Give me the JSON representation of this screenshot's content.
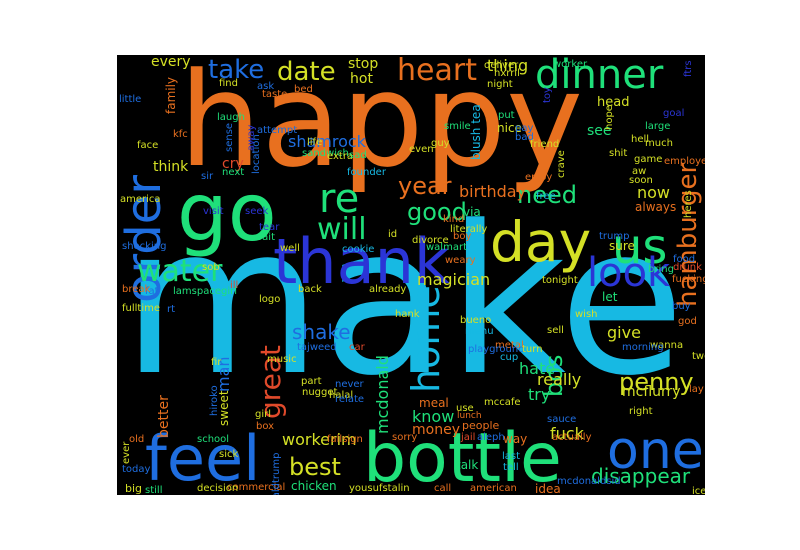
{
  "palette": [
    "#e8701f",
    "#17b9e3",
    "#1fe07a",
    "#d4e026",
    "#2b35d6",
    "#1f6ee0",
    "#e04a2b",
    "#21d6c8"
  ],
  "words": [
    {
      "text": "make",
      "c": 1
    },
    {
      "text": "happy",
      "c": 0
    },
    {
      "text": "go",
      "c": 2
    },
    {
      "text": "thank",
      "c": 4
    },
    {
      "text": "bottle",
      "c": 2
    },
    {
      "text": "feel",
      "c": 5
    },
    {
      "text": "day",
      "c": 3
    },
    {
      "text": "one",
      "c": 5
    },
    {
      "text": "us",
      "c": 2
    },
    {
      "text": "dinner",
      "c": 2
    },
    {
      "text": "order",
      "c": 5
    },
    {
      "text": "re",
      "c": 2
    },
    {
      "text": "home",
      "c": 1
    },
    {
      "text": "look",
      "c": 4
    },
    {
      "text": "water",
      "c": 2
    },
    {
      "text": "heart",
      "c": 0
    },
    {
      "text": "take",
      "c": 5
    },
    {
      "text": "date",
      "c": 3
    },
    {
      "text": "hamburger",
      "c": 0
    },
    {
      "text": "will",
      "c": 2
    },
    {
      "text": "great",
      "c": 6
    },
    {
      "text": "best",
      "c": 3
    },
    {
      "text": "good",
      "c": 2
    },
    {
      "text": "year",
      "c": 0
    },
    {
      "text": "need",
      "c": 2
    },
    {
      "text": "penny",
      "c": 3
    },
    {
      "text": "bos",
      "c": 2
    },
    {
      "text": "shake",
      "c": 5
    },
    {
      "text": "disappear",
      "c": 2
    },
    {
      "text": "workerim",
      "c": 3
    },
    {
      "text": "fuck",
      "c": 3
    },
    {
      "text": "mcdonald",
      "c": 2
    },
    {
      "text": "magician",
      "c": 3
    },
    {
      "text": "now",
      "c": 3
    },
    {
      "text": "birthday",
      "c": 0
    },
    {
      "text": "man",
      "c": 5
    },
    {
      "text": "hate",
      "c": 2
    },
    {
      "text": "really",
      "c": 3
    },
    {
      "text": "try",
      "c": 2
    },
    {
      "text": "know",
      "c": 2
    },
    {
      "text": "meal",
      "c": 0
    },
    {
      "text": "money",
      "c": 0
    },
    {
      "text": "give",
      "c": 3
    },
    {
      "text": "mcflurry",
      "c": 3
    },
    {
      "text": "better",
      "c": 0
    },
    {
      "text": "think",
      "c": 3
    },
    {
      "text": "cry",
      "c": 6
    },
    {
      "text": "stop",
      "c": 3
    },
    {
      "text": "hot",
      "c": 3
    },
    {
      "text": "thing",
      "c": 3
    },
    {
      "text": "every",
      "c": 3
    },
    {
      "text": "shamrock",
      "c": 5
    },
    {
      "text": "head",
      "c": 3
    },
    {
      "text": "see",
      "c": 2
    },
    {
      "text": "blush tea",
      "c": 1
    },
    {
      "text": "nice",
      "c": 3
    },
    {
      "text": "always",
      "c": 0
    },
    {
      "text": "sure",
      "c": 3
    },
    {
      "text": "via",
      "c": 2
    },
    {
      "text": "let",
      "c": 2
    },
    {
      "text": "family",
      "c": 0
    },
    {
      "text": "chicken",
      "c": 2
    },
    {
      "text": "school",
      "c": 2
    },
    {
      "text": "nugget",
      "c": 3
    },
    {
      "text": "sweet",
      "c": 3
    },
    {
      "text": "people",
      "c": 0
    },
    {
      "text": "talk",
      "c": 2
    },
    {
      "text": "way",
      "c": 0
    },
    {
      "text": "idea",
      "c": 0
    },
    {
      "text": "call",
      "c": 0
    },
    {
      "text": "american",
      "c": 0
    },
    {
      "text": "yousufstalin",
      "c": 3
    },
    {
      "text": "commercial",
      "c": 0
    },
    {
      "text": "decision",
      "c": 3
    },
    {
      "text": "still",
      "c": 2
    },
    {
      "text": "big",
      "c": 3
    },
    {
      "text": "today",
      "c": 5
    },
    {
      "text": "old",
      "c": 0
    },
    {
      "text": "sick",
      "c": 3
    },
    {
      "text": "box",
      "c": 0
    },
    {
      "text": "girl",
      "c": 3
    },
    {
      "text": "music",
      "c": 3
    },
    {
      "text": "fir",
      "c": 3
    },
    {
      "text": "hiroko",
      "c": 5
    },
    {
      "text": "part",
      "c": 3
    },
    {
      "text": "halal",
      "c": 3
    },
    {
      "text": "never",
      "c": 5
    },
    {
      "text": "relate",
      "c": 5
    },
    {
      "text": "tajweed",
      "c": 5
    },
    {
      "text": "car",
      "c": 6
    },
    {
      "text": "metal",
      "c": 0
    },
    {
      "text": "cup",
      "c": 1
    },
    {
      "text": "bueno",
      "c": 3
    },
    {
      "text": "menu",
      "c": 1
    },
    {
      "text": "playground",
      "c": 5
    },
    {
      "text": "sell",
      "c": 3
    },
    {
      "text": "turn",
      "c": 3
    },
    {
      "text": "wanna",
      "c": 3
    },
    {
      "text": "god",
      "c": 0
    },
    {
      "text": "morning",
      "c": 5
    },
    {
      "text": "right",
      "c": 3
    },
    {
      "text": "lay",
      "c": 0
    },
    {
      "text": "sauce",
      "c": 5
    },
    {
      "text": "actually",
      "c": 0
    },
    {
      "text": "mcdonaldsid",
      "c": 5
    },
    {
      "text": "ice",
      "c": 3
    },
    {
      "text": "jail",
      "c": 6
    },
    {
      "text": "last",
      "c": 1
    },
    {
      "text": "tell",
      "c": 1
    },
    {
      "text": "use",
      "c": 3
    },
    {
      "text": "lunch",
      "c": 0
    },
    {
      "text": "mccafe",
      "c": 3
    },
    {
      "text": "aleph",
      "c": 5
    },
    {
      "text": "sorry",
      "c": 0
    },
    {
      "text": "fallsign",
      "c": 0
    },
    {
      "text": "realdonaldtrump",
      "c": 5
    },
    {
      "text": "lamspacegirl",
      "c": 2
    },
    {
      "text": "fulltime",
      "c": 3
    },
    {
      "text": "fat",
      "c": 5
    },
    {
      "text": "break",
      "c": 0
    },
    {
      "text": "shocking",
      "c": 5
    },
    {
      "text": "america",
      "c": 3
    },
    {
      "text": "face",
      "c": 3
    },
    {
      "text": "kfc",
      "c": 0
    },
    {
      "text": "little",
      "c": 5
    },
    {
      "text": "find",
      "c": 3
    },
    {
      "text": "taste",
      "c": 0
    },
    {
      "text": "ask",
      "c": 5
    },
    {
      "text": "bed",
      "c": 0
    },
    {
      "text": "laugh",
      "c": 2
    },
    {
      "text": "attempt",
      "c": 5
    },
    {
      "text": "sir",
      "c": 5
    },
    {
      "text": "visit",
      "c": 4
    },
    {
      "text": "seek",
      "c": 4
    },
    {
      "text": "sob",
      "c": 3
    },
    {
      "text": "ill",
      "c": 6
    },
    {
      "text": "tear",
      "c": 4
    },
    {
      "text": "wait",
      "c": 2
    },
    {
      "text": "well",
      "c": 3
    },
    {
      "text": "logo",
      "c": 3
    },
    {
      "text": "back",
      "c": 3
    },
    {
      "text": "already",
      "c": 3
    },
    {
      "text": "hank",
      "c": 3
    },
    {
      "text": "life",
      "c": 3
    },
    {
      "text": "sandwich",
      "c": 2
    },
    {
      "text": "extra",
      "c": 3
    },
    {
      "text": "sad",
      "c": 2
    },
    {
      "text": "founder",
      "c": 1
    },
    {
      "text": "cookie",
      "c": 1
    },
    {
      "text": "id",
      "c": 3
    },
    {
      "text": "divorce",
      "c": 3
    },
    {
      "text": "walmart",
      "c": 2
    },
    {
      "text": "literally",
      "c": 3
    },
    {
      "text": "boy",
      "c": 0
    },
    {
      "text": "weary",
      "c": 0
    },
    {
      "text": "kind",
      "c": 0
    },
    {
      "text": "even",
      "c": 3
    },
    {
      "text": "guy",
      "c": 3
    },
    {
      "text": "smile",
      "c": 2
    },
    {
      "text": "put",
      "c": 2
    },
    {
      "text": "pay",
      "c": 5
    },
    {
      "text": "bad",
      "c": 5
    },
    {
      "text": "friend",
      "c": 3
    },
    {
      "text": "worker",
      "c": 2
    },
    {
      "text": "deliver",
      "c": 3
    },
    {
      "text": "hxrril",
      "c": 3
    },
    {
      "text": "night",
      "c": 3
    },
    {
      "text": "shit",
      "c": 3
    },
    {
      "text": "hope",
      "c": 3
    },
    {
      "text": "large",
      "c": 2
    },
    {
      "text": "much",
      "c": 3
    },
    {
      "text": "game",
      "c": 3
    },
    {
      "text": "aw",
      "c": 3
    },
    {
      "text": "soon",
      "c": 3
    },
    {
      "text": "employee",
      "c": 0
    },
    {
      "text": "free",
      "c": 1
    },
    {
      "text": "enjoy",
      "c": 0
    },
    {
      "text": "crave",
      "c": 3
    },
    {
      "text": "tonight",
      "c": 3
    },
    {
      "text": "wish",
      "c": 3
    },
    {
      "text": "trump",
      "c": 5
    },
    {
      "text": "food",
      "c": 5
    },
    {
      "text": "drunk",
      "c": 6
    },
    {
      "text": "fucking",
      "c": 0
    },
    {
      "text": "buy",
      "c": 5
    },
    {
      "text": "heres",
      "c": 3
    },
    {
      "text": "bring",
      "c": 2
    },
    {
      "text": "two",
      "c": 3
    },
    {
      "text": "hell",
      "c": 3
    },
    {
      "text": "goal",
      "c": 4
    },
    {
      "text": "toy",
      "c": 4
    },
    {
      "text": "ftrs",
      "c": 4
    },
    {
      "text": "away",
      "c": 4
    },
    {
      "text": "sense",
      "c": 5
    },
    {
      "text": "location",
      "c": 5
    },
    {
      "text": "rt",
      "c": 5
    },
    {
      "text": "ever",
      "c": 3
    },
    {
      "text": "next",
      "c": 2
    }
  ]
}
